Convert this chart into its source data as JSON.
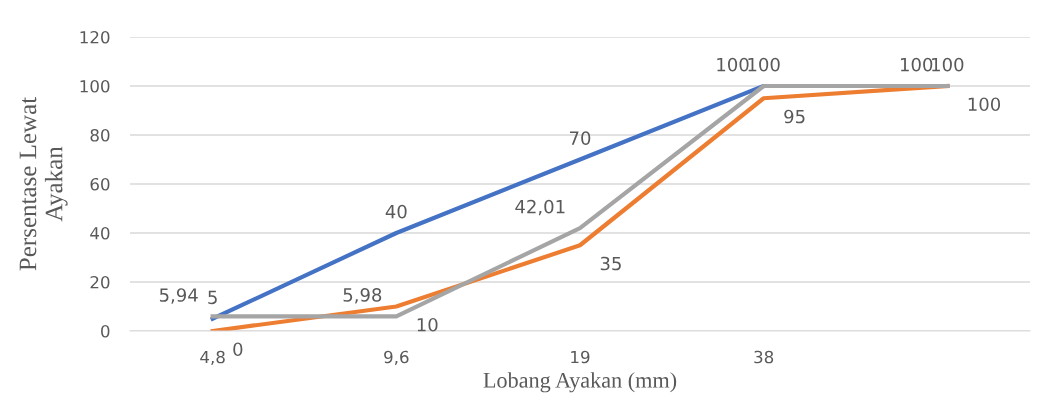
{
  "chart_data": {
    "type": "line",
    "xlabel": "Lobang Ayakan (mm)",
    "ylabel": "Persentase Lewat\nAyakan",
    "categories": [
      "4,8",
      "9,6",
      "19",
      "38",
      null
    ],
    "series": [
      {
        "color": "#4472c4",
        "values": [
          5,
          40,
          70,
          100,
          100
        ],
        "value_labels": [
          "5",
          "40",
          "70",
          "100",
          "100"
        ]
      },
      {
        "color": "#ed7d31",
        "values": [
          0,
          10,
          35,
          95,
          100
        ],
        "value_labels": [
          "0",
          "10",
          "35",
          "95",
          "100"
        ]
      },
      {
        "color": "#a5a5a5",
        "values": [
          5.94,
          5.98,
          42.01,
          100,
          100
        ],
        "value_labels": [
          "5,94",
          "5,98",
          "42,01",
          "100",
          "100"
        ]
      }
    ],
    "ylim": [
      0,
      120
    ],
    "yticks": [
      0,
      20,
      40,
      60,
      80,
      100,
      120
    ],
    "grid": "y",
    "legend": false,
    "marker": "none",
    "line_style": "solid"
  }
}
